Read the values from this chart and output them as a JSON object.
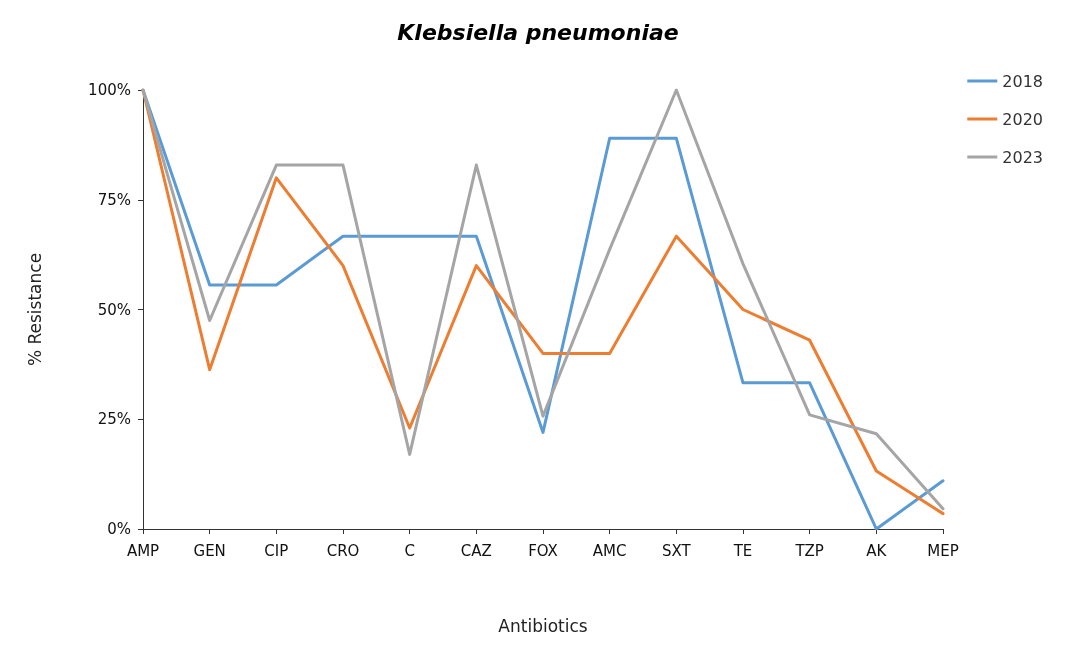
{
  "chart_data": {
    "type": "line",
    "title": "Klebsiella pneumoniae",
    "xlabel": "Antibiotics",
    "ylabel": "% Resistance",
    "categories": [
      "AMP",
      "GEN",
      "CIP",
      "CRO",
      "C",
      "CAZ",
      "FOX",
      "AMC",
      "SXT",
      "TE",
      "TZP",
      "AK",
      "MEP"
    ],
    "series": [
      {
        "name": "2018",
        "color": "#5b9bd5",
        "values": [
          100,
          55.6,
          55.6,
          66.7,
          66.7,
          66.7,
          22,
          89,
          89,
          33.3,
          33.3,
          0,
          11
        ]
      },
      {
        "name": "2020",
        "color": "#ed7d31",
        "values": [
          100,
          36.3,
          80,
          60,
          23,
          60,
          40,
          40,
          66.7,
          50,
          43,
          13.2,
          3.5
        ]
      },
      {
        "name": "2023",
        "color": "#a5a5a5",
        "values": [
          100,
          47.5,
          82.9,
          82.9,
          17,
          82.9,
          25.7,
          63.7,
          100,
          60.4,
          26,
          21.7,
          4.6
        ]
      }
    ],
    "ylim": [
      0,
      100
    ],
    "yticks": [
      {
        "value": 0,
        "label": "0%"
      },
      {
        "value": 25,
        "label": "25%"
      },
      {
        "value": 50,
        "label": "50%"
      },
      {
        "value": 75,
        "label": "75%"
      },
      {
        "value": 100,
        "label": "100%"
      }
    ],
    "grid": false,
    "legend": "top right",
    "marker": "none",
    "line_style": "solid"
  }
}
